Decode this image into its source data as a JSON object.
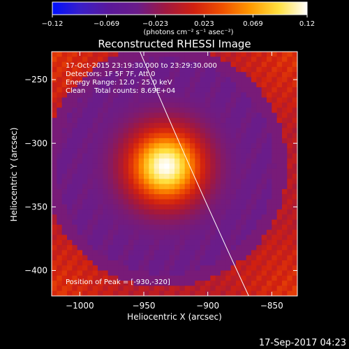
{
  "chart_data": {
    "type": "heatmap",
    "title": "Reconstructed RHESSI Image",
    "xlabel": "Heliocentric X (arcsec)",
    "ylabel": "Heliocentric Y (arcsec)",
    "xlim": [
      -1022,
      -830
    ],
    "ylim": [
      -420,
      -228
    ],
    "xticks": [
      -1000,
      -950,
      -900,
      -850
    ],
    "yticks": [
      -250,
      -300,
      -350,
      -400
    ],
    "xtick_labels": [
      "−1000",
      "−950",
      "−900",
      "−850"
    ],
    "ytick_labels": [
      "−250",
      "−300",
      "−350",
      "−400"
    ],
    "colorbar": {
      "min": -0.12,
      "max": 0.12,
      "ticks": [
        -0.12,
        -0.069,
        -0.023,
        0.023,
        0.069,
        0.12
      ],
      "tick_labels": [
        "−0.12",
        "−0.069",
        "−0.023",
        "0.023",
        "0.069",
        "0.12"
      ],
      "units_label": "(photons cm⁻² s⁻¹ asec⁻²)",
      "colors": [
        "#0010ff",
        "#3a1fc8",
        "#5a189a",
        "#6a1c8a",
        "#a01840",
        "#d02010",
        "#f05000",
        "#ff9a00",
        "#ffe040",
        "#ffffff"
      ]
    },
    "info_lines": [
      "17-Oct-2015 23:19:30.000 to 23:29:30.000",
      "Detectors: 1F 5F 7F, Att 0",
      "Energy Range: 12.0 - 25.0 keV",
      "Clean    Total counts: 8.69E+04"
    ],
    "peak_label": "Position of Peak = [-930,-320]",
    "peak": [
      -930,
      -320
    ],
    "source": {
      "center": [
        -933,
        -318
      ],
      "sigma": 20,
      "peak_value": 0.12
    },
    "limb_line": [
      [
        -953,
        -228
      ],
      [
        -915,
        -318
      ],
      [
        -868,
        -420
      ]
    ]
  },
  "footer": {
    "timestamp": "17-Sep-2017 04:23"
  }
}
